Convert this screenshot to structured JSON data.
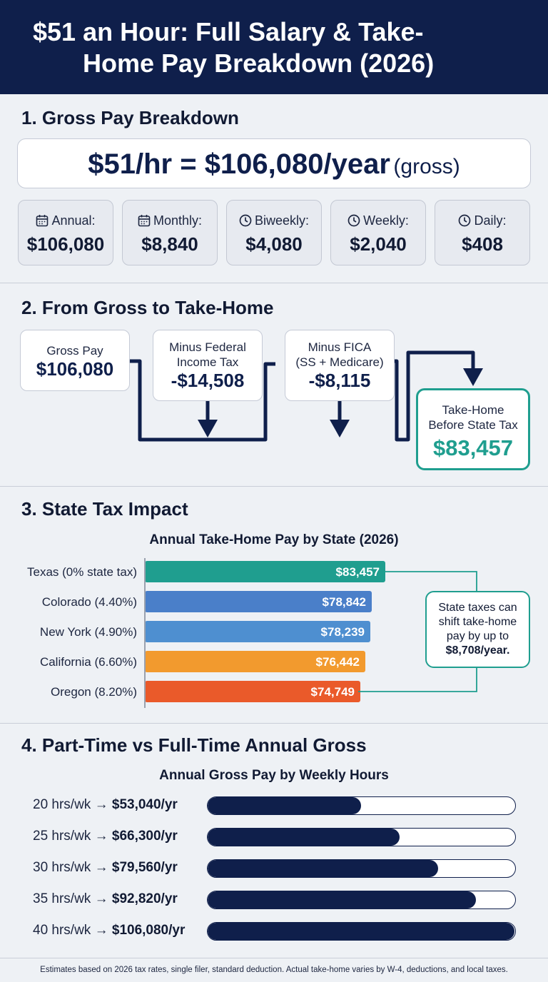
{
  "header": {
    "title_line1": "$51 an Hour: Full Salary & Take-",
    "title_line2": "Home Pay Breakdown (2026)"
  },
  "section1": {
    "title": "1. Gross Pay Breakdown",
    "hero_main": "$51/hr = $106,080/year",
    "hero_sub": "(gross)",
    "cards": [
      {
        "label": "Annual:",
        "value": "$106,080",
        "icon": "calendar-icon"
      },
      {
        "label": "Monthly:",
        "value": "$8,840",
        "icon": "calendar-icon"
      },
      {
        "label": "Biweekly:",
        "value": "$4,080",
        "icon": "clock-icon"
      },
      {
        "label": "Weekly:",
        "value": "$2,040",
        "icon": "clock-icon"
      },
      {
        "label": "Daily:",
        "value": "$408",
        "icon": "clock-icon"
      }
    ]
  },
  "section2": {
    "title": "2. From Gross to Take-Home",
    "gross_label": "Gross Pay",
    "gross_value": "$106,080",
    "federal_label_1": "Minus Federal",
    "federal_label_2": "Income Tax",
    "federal_value": "-$14,508",
    "fica_label_1": "Minus FICA",
    "fica_label_2": "(SS + Medicare)",
    "fica_value": "-$8,115",
    "takehome_label_1": "Take-Home",
    "takehome_label_2": "Before State Tax",
    "takehome_value": "$83,457"
  },
  "section3": {
    "title": "3. State Tax Impact",
    "callout_line1": "State taxes can",
    "callout_line2": "shift take-home",
    "callout_line3": "pay by up to",
    "callout_line4": "$8,708/year."
  },
  "section4": {
    "title": "4. Part-Time vs Full-Time Annual Gross"
  },
  "footnote": "Estimates based on 2026 tax rates, single filer, standard deduction. Actual take-home varies by W-4, deductions, and local taxes.",
  "colors": {
    "navy": "#0f1f4b",
    "teal": "#1f9e8f",
    "texas": "#1f9e8f",
    "colorado": "#4a7fc9",
    "new_york": "#4e8fd0",
    "california": "#f29a2e",
    "oregon": "#ea5a2a"
  },
  "chart_data": [
    {
      "type": "bar",
      "title": "Annual Take-Home Pay by State (2026)",
      "categories": [
        "Texas (0% state tax)",
        "Colorado (4.40%)",
        "New York (4.90%)",
        "California (6.60%)",
        "Oregon (8.20%)"
      ],
      "values": [
        83457,
        78842,
        78239,
        76442,
        74749
      ],
      "value_labels": [
        "$83,457",
        "$78,842",
        "$78,239",
        "$76,442",
        "$74,749"
      ],
      "colors": [
        "#1f9e8f",
        "#4a7fc9",
        "#4e8fd0",
        "#f29a2e",
        "#ea5a2a"
      ]
    },
    {
      "type": "bar",
      "title": "Annual Gross Pay by Weekly Hours",
      "categories": [
        "20 hrs/wk",
        "25 hrs/wk",
        "30 hrs/wk",
        "35 hrs/wk",
        "40 hrs/wk"
      ],
      "values": [
        53040,
        66300,
        79560,
        92820,
        106080
      ],
      "value_labels": [
        "$53,040/yr",
        "$66,300/yr",
        "$79,560/yr",
        "$92,820/yr",
        "$106,080/yr"
      ],
      "xlim": [
        0,
        106080
      ]
    }
  ]
}
